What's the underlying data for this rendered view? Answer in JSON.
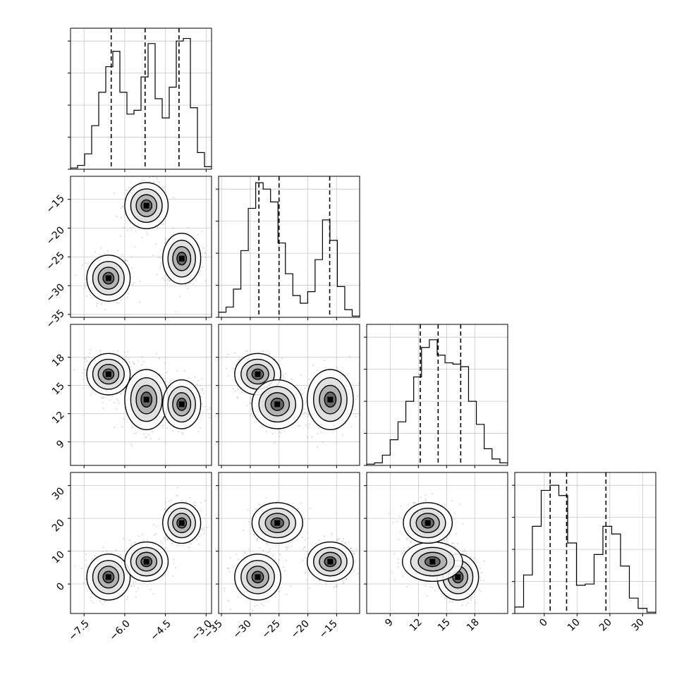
{
  "chart_data": {
    "type": "corner",
    "grid": true,
    "params": [
      {
        "range": [
          -8.0,
          -2.8
        ],
        "ticks": [
          -7.5,
          -6.0,
          -4.5,
          -3.0
        ],
        "tick_labels": [
          "−7.5",
          "−6.0",
          "−4.5",
          "−3.0"
        ],
        "quantiles": [
          -6.5,
          -5.25,
          -4.0
        ],
        "hist_values": [
          0.01,
          0.03,
          0.12,
          0.34,
          0.6,
          0.8,
          0.92,
          0.6,
          0.43,
          0.46,
          0.72,
          0.98,
          0.55,
          0.4,
          0.64,
          1.0,
          1.02,
          0.48,
          0.13,
          0.02
        ]
      },
      {
        "range": [
          -35.5,
          -11.0
        ],
        "ticks": [
          -35,
          -30,
          -25,
          -20,
          -15
        ],
        "tick_labels": [
          "−35",
          "−30",
          "−25",
          "−20",
          "−15"
        ],
        "quantiles": [
          -28.5,
          -25.0,
          -16.2
        ],
        "hist_values": [
          0.04,
          0.08,
          0.22,
          0.52,
          0.85,
          1.05,
          1.0,
          0.9,
          0.58,
          0.34,
          0.17,
          0.11,
          0.2,
          0.45,
          0.76,
          0.6,
          0.24,
          0.06,
          0.01
        ]
      },
      {
        "range": [
          6.5,
          21.5
        ],
        "ticks": [
          9,
          12,
          15,
          18
        ],
        "tick_labels": [
          "9",
          "12",
          "15",
          "18"
        ],
        "quantiles": [
          12.2,
          14.1,
          16.5
        ],
        "hist_values": [
          0.01,
          0.02,
          0.08,
          0.2,
          0.34,
          0.5,
          0.69,
          0.92,
          0.98,
          0.86,
          0.8,
          0.79,
          0.77,
          0.5,
          0.32,
          0.13,
          0.05,
          0.02
        ]
      },
      {
        "range": [
          -9.0,
          34.0
        ],
        "ticks": [
          0,
          10,
          20,
          30
        ],
        "tick_labels": [
          "0",
          "10",
          "20",
          "30"
        ],
        "quantiles": [
          1.8,
          6.8,
          18.8
        ],
        "hist_values": [
          0.05,
          0.3,
          0.68,
          0.96,
          1.0,
          0.92,
          0.55,
          0.22,
          0.23,
          0.46,
          0.68,
          0.62,
          0.37,
          0.12,
          0.04,
          0.01
        ]
      }
    ],
    "clusters": [
      {
        "means": [
          -6.6,
          -28.7,
          16.2,
          2.1
        ],
        "sds": [
          0.4,
          2.0,
          1.1,
          3.5
        ]
      },
      {
        "means": [
          -5.2,
          -16.1,
          13.5,
          6.8
        ],
        "sds": [
          0.4,
          2.0,
          1.6,
          3.0
        ]
      },
      {
        "means": [
          -3.9,
          -25.3,
          13.0,
          18.6
        ],
        "sds": [
          0.35,
          2.2,
          1.3,
          3.1
        ]
      }
    ]
  },
  "labels": {
    "t0": "−7.5",
    "t1": "−6.0",
    "t2": "−4.5",
    "t3": "−3.0",
    "u0": "−35",
    "u1": "−30",
    "u2": "−25",
    "u3": "−20",
    "u4": "−15",
    "v0": "9",
    "v1": "12",
    "v2": "15",
    "v3": "18",
    "w0": "0",
    "w1": "10",
    "w2": "20",
    "w3": "30"
  }
}
